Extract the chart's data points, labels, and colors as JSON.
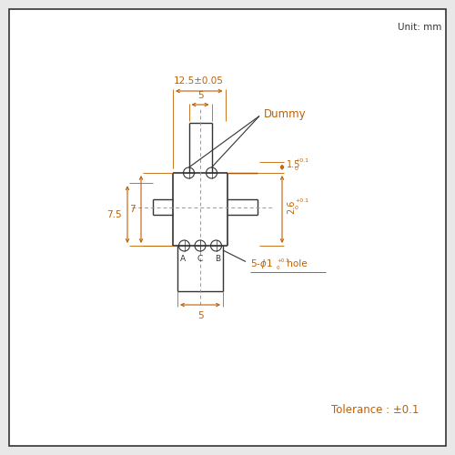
{
  "bg_color": "#e8e8e8",
  "box_color": "#ffffff",
  "line_color": "#333333",
  "dim_color": "#c06000",
  "unit_text": "Unit: mm",
  "tolerance_text": "Tolerance : ±0.1",
  "dummy_text": "Dummy",
  "dim_12_5": "12.5±0.05",
  "dim_5_top": "5",
  "dim_5_bot": "5",
  "dim_7": "7",
  "dim_7_5": "7.5",
  "dim_1_5": "1.5",
  "dim_2_6": "2.6",
  "label_A": "A",
  "label_C": "C",
  "label_B": "B"
}
